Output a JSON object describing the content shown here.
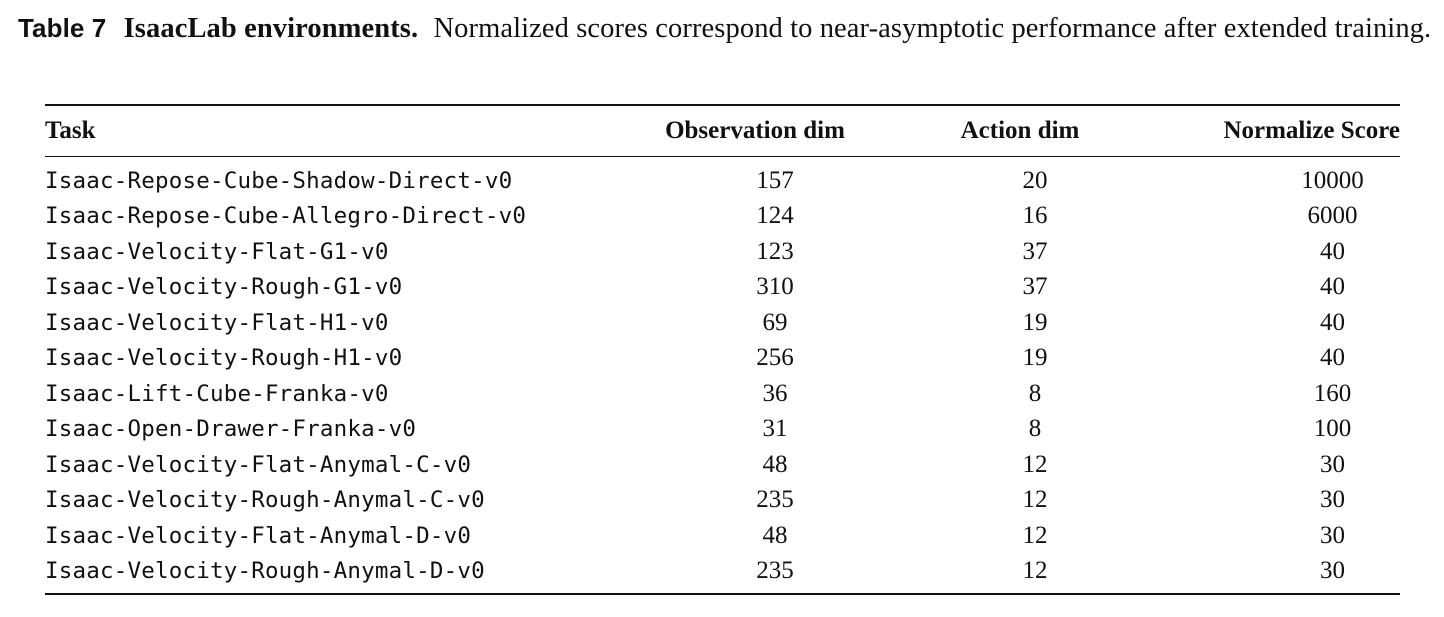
{
  "caption": {
    "label": "Table 7",
    "title": "IsaacLab environments.",
    "text": "Normalized scores correspond to near-asymptotic performance after extended training."
  },
  "table": {
    "headers": {
      "task": "Task",
      "obs": "Observation dim",
      "act": "Action dim",
      "score": "Normalize Score"
    },
    "rows": [
      {
        "task": "Isaac-Repose-Cube-Shadow-Direct-v0",
        "obs": "157",
        "act": "20",
        "score": "10000"
      },
      {
        "task": "Isaac-Repose-Cube-Allegro-Direct-v0",
        "obs": "124",
        "act": "16",
        "score": "6000"
      },
      {
        "task": "Isaac-Velocity-Flat-G1-v0",
        "obs": "123",
        "act": "37",
        "score": "40"
      },
      {
        "task": "Isaac-Velocity-Rough-G1-v0",
        "obs": "310",
        "act": "37",
        "score": "40"
      },
      {
        "task": "Isaac-Velocity-Flat-H1-v0",
        "obs": "69",
        "act": "19",
        "score": "40"
      },
      {
        "task": "Isaac-Velocity-Rough-H1-v0",
        "obs": "256",
        "act": "19",
        "score": "40"
      },
      {
        "task": "Isaac-Lift-Cube-Franka-v0",
        "obs": "36",
        "act": "8",
        "score": "160"
      },
      {
        "task": "Isaac-Open-Drawer-Franka-v0",
        "obs": "31",
        "act": "8",
        "score": "100"
      },
      {
        "task": "Isaac-Velocity-Flat-Anymal-C-v0",
        "obs": "48",
        "act": "12",
        "score": "30"
      },
      {
        "task": "Isaac-Velocity-Rough-Anymal-C-v0",
        "obs": "235",
        "act": "12",
        "score": "30"
      },
      {
        "task": "Isaac-Velocity-Flat-Anymal-D-v0",
        "obs": "48",
        "act": "12",
        "score": "30"
      },
      {
        "task": "Isaac-Velocity-Rough-Anymal-D-v0",
        "obs": "235",
        "act": "12",
        "score": "30"
      }
    ]
  }
}
